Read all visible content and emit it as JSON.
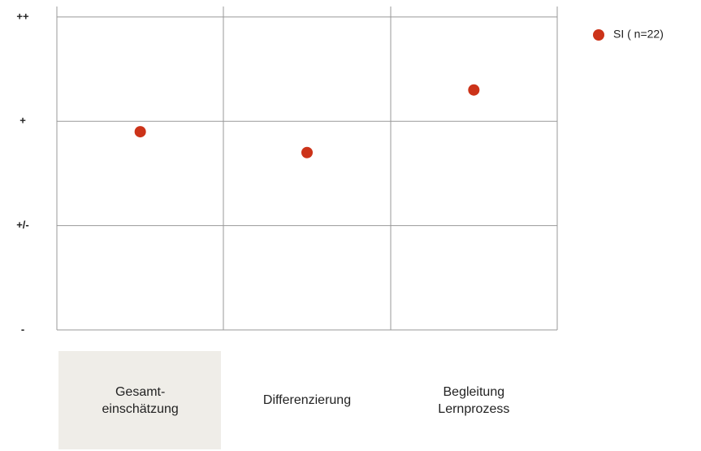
{
  "chart_data": {
    "type": "scatter",
    "categories": [
      "Gesamt-\neinschätzung",
      "Differenzierung",
      "Begleitung\nLernprozess"
    ],
    "series": [
      {
        "name": "SI ( n=22)",
        "color": "#cc3319",
        "values": [
          1.9,
          1.7,
          2.3
        ]
      }
    ],
    "ylim": [
      0,
      3.1
    ],
    "yticks": [
      {
        "value": 0,
        "label": "-"
      },
      {
        "value": 1,
        "label": "+/-"
      },
      {
        "value": 2,
        "label": "+"
      },
      {
        "value": 3,
        "label": "++"
      }
    ],
    "grid": true,
    "legend": "top-right"
  }
}
